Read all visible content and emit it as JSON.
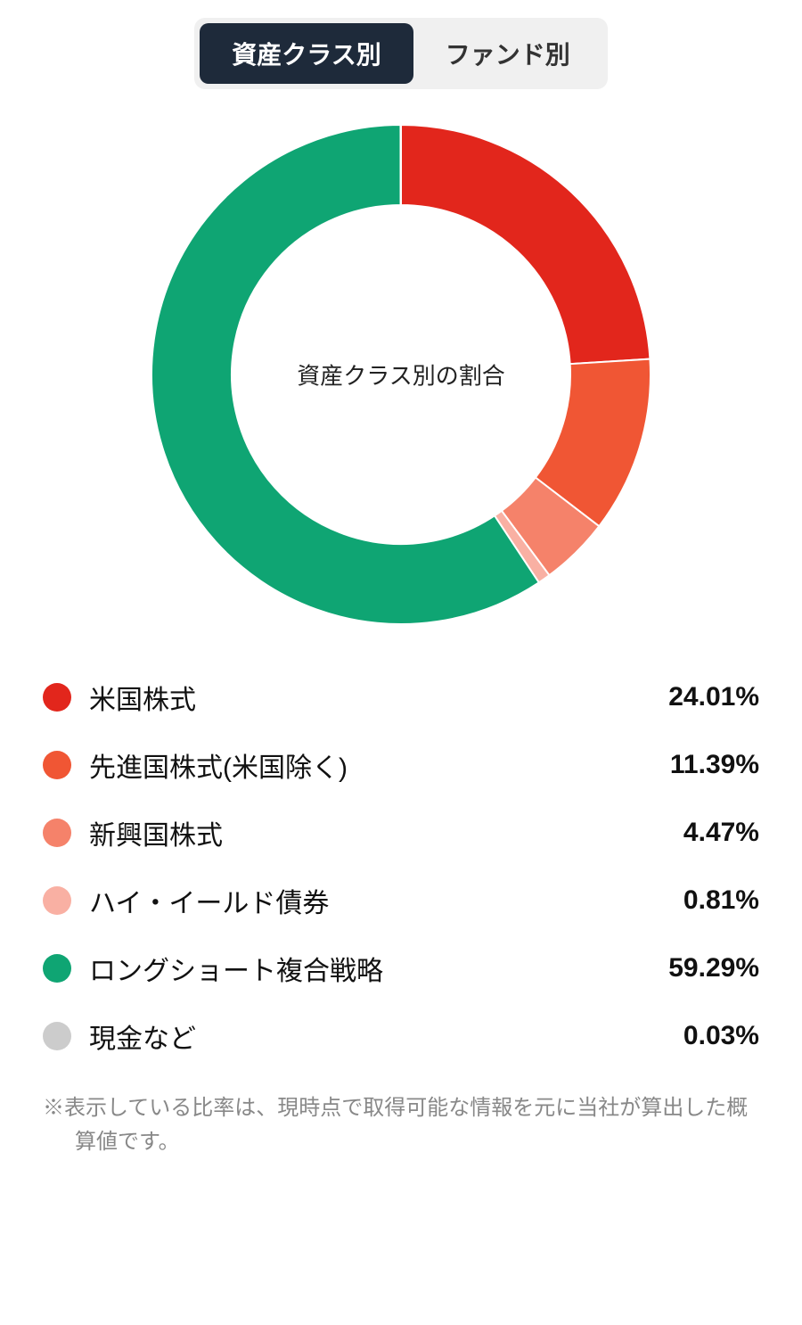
{
  "tabs": {
    "active": "資産クラス別",
    "inactive": "ファンド別",
    "active_bg": "#1e2a3a",
    "active_color": "#ffffff",
    "inactive_bg": "#f0f0f0",
    "inactive_color": "#333333"
  },
  "chart": {
    "type": "donut",
    "center_label": "資産クラス別の割合",
    "background_color": "#ffffff",
    "outer_radius": 280,
    "inner_radius": 190,
    "start_angle_deg": -90,
    "slices": [
      {
        "label": "米国株式",
        "value": 24.01,
        "color": "#e2261c"
      },
      {
        "label": "先進国株式(米国除く)",
        "value": 11.39,
        "color": "#f05634"
      },
      {
        "label": "新興国株式",
        "value": 4.47,
        "color": "#f5826a"
      },
      {
        "label": "ハイ・イールド債券",
        "value": 0.81,
        "color": "#f9b0a3"
      },
      {
        "label": "ロングショート複合戦略",
        "value": 59.29,
        "color": "#0fa573"
      },
      {
        "label": "現金など",
        "value": 0.03,
        "color": "#cccccc"
      }
    ]
  },
  "legend": {
    "items": [
      {
        "label": "米国株式",
        "value": "24.01%",
        "color": "#e2261c"
      },
      {
        "label": "先進国株式(米国除く)",
        "value": "11.39%",
        "color": "#f05634"
      },
      {
        "label": "新興国株式",
        "value": "4.47%",
        "color": "#f5826a"
      },
      {
        "label": "ハイ・イールド債券",
        "value": "0.81%",
        "color": "#f9b0a3"
      },
      {
        "label": "ロングショート複合戦略",
        "value": "59.29%",
        "color": "#0fa573"
      },
      {
        "label": "現金など",
        "value": "0.03%",
        "color": "#cccccc"
      }
    ]
  },
  "footnote": "※表示している比率は、現時点で取得可能な情報を元に当社が算出した概算値です。"
}
